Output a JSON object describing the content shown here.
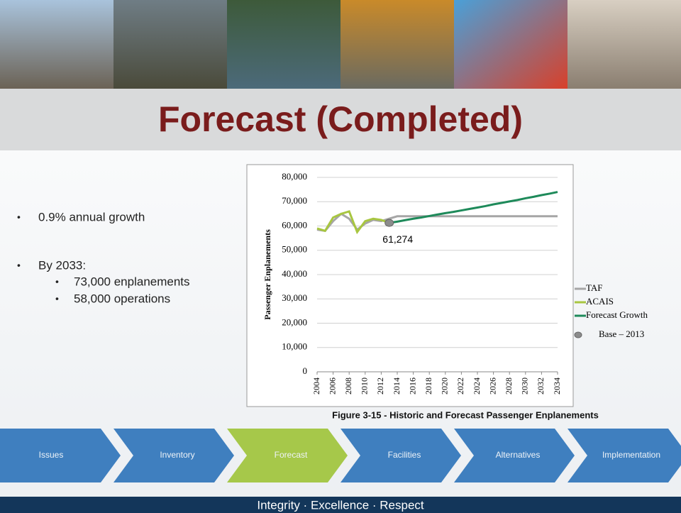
{
  "title": "Forecast (Completed)",
  "bullets": [
    "0.9% annual growth",
    "By 2033:"
  ],
  "sub_bullets": [
    "73,000 enplanements",
    "58,000 operations"
  ],
  "chart_data": {
    "type": "line",
    "y_label": "Passenger Enplanements",
    "x": [
      2004,
      2005,
      2006,
      2007,
      2008,
      2009,
      2010,
      2011,
      2012,
      2013,
      2014,
      2015,
      2016,
      2017,
      2018,
      2019,
      2020,
      2021,
      2022,
      2023,
      2024,
      2025,
      2026,
      2027,
      2028,
      2029,
      2030,
      2031,
      2032,
      2033,
      2034
    ],
    "xlim": [
      2004,
      2034
    ],
    "xticks": [
      2004,
      2006,
      2008,
      2010,
      2012,
      2014,
      2016,
      2018,
      2020,
      2022,
      2024,
      2026,
      2028,
      2030,
      2032,
      2034
    ],
    "ylim": [
      0,
      80000
    ],
    "yticks": [
      0,
      {
        "value": 10000,
        "label": "10,000"
      },
      {
        "value": 20000,
        "label": "20,000"
      },
      {
        "value": 30000,
        "label": "30,000"
      },
      {
        "value": 40000,
        "label": "40,000"
      },
      {
        "value": 50000,
        "label": "50,000"
      },
      {
        "value": 60000,
        "label": "60,000"
      },
      {
        "value": 70000,
        "label": "70,000"
      },
      {
        "value": 80000,
        "label": "80,000"
      }
    ],
    "grid": true,
    "series": [
      {
        "name": "TAF",
        "color": "#a6a6a6",
        "values": [
          58500,
          58000,
          62000,
          65000,
          63000,
          58500,
          61000,
          62500,
          62000,
          63000,
          64000,
          64000,
          64000,
          64000,
          64000,
          64000,
          64000,
          64000,
          64000,
          64000,
          64000,
          64000,
          64000,
          64000,
          64000,
          64000,
          64000,
          64000,
          64000,
          64000,
          64000
        ]
      },
      {
        "name": "ACAIS",
        "color": "#a8c640",
        "values": [
          59000,
          58000,
          63500,
          65000,
          66000,
          57500,
          62000,
          63000,
          62500,
          61274,
          null,
          null,
          null,
          null,
          null,
          null,
          null,
          null,
          null,
          null,
          null,
          null,
          null,
          null,
          null,
          null,
          null,
          null,
          null,
          null,
          null
        ]
      },
      {
        "name": "Forecast Growth",
        "color": "#1e8a5a",
        "values": [
          null,
          null,
          null,
          null,
          null,
          null,
          null,
          null,
          null,
          61274,
          61800,
          62400,
          63000,
          63500,
          64100,
          64700,
          65300,
          65800,
          66400,
          67000,
          67600,
          68200,
          68900,
          69500,
          70100,
          70700,
          71400,
          72000,
          72700,
          73300,
          74000
        ]
      },
      {
        "name": "Base – 2013",
        "color": "#8c8c8c",
        "marker": "circle",
        "values": [
          null,
          null,
          null,
          null,
          null,
          null,
          null,
          null,
          null,
          61274,
          null,
          null,
          null,
          null,
          null,
          null,
          null,
          null,
          null,
          null,
          null,
          null,
          null,
          null,
          null,
          null,
          null,
          null,
          null,
          null,
          null
        ],
        "value_labels": [
          null,
          null,
          null,
          null,
          null,
          null,
          null,
          null,
          null,
          "61,274",
          null,
          null,
          null,
          null,
          null,
          null,
          null,
          null,
          null,
          null,
          null,
          null,
          null,
          null,
          null,
          null,
          null,
          null,
          null,
          null,
          null
        ]
      }
    ]
  },
  "figure_caption": "Figure 3-15 - Historic and Forecast Passenger Enplanements",
  "process_steps": [
    {
      "label": "Issues",
      "color": "#3f7fbf"
    },
    {
      "label": "Inventory",
      "color": "#3f7fbf"
    },
    {
      "label": "Forecast",
      "color": "#a6c84a"
    },
    {
      "label": "Facilities",
      "color": "#3f7fbf"
    },
    {
      "label": "Alternatives",
      "color": "#3f7fbf"
    },
    {
      "label": "Implementation",
      "color": "#3f7fbf"
    }
  ],
  "footer": "Integrity · Excellence · Respect"
}
